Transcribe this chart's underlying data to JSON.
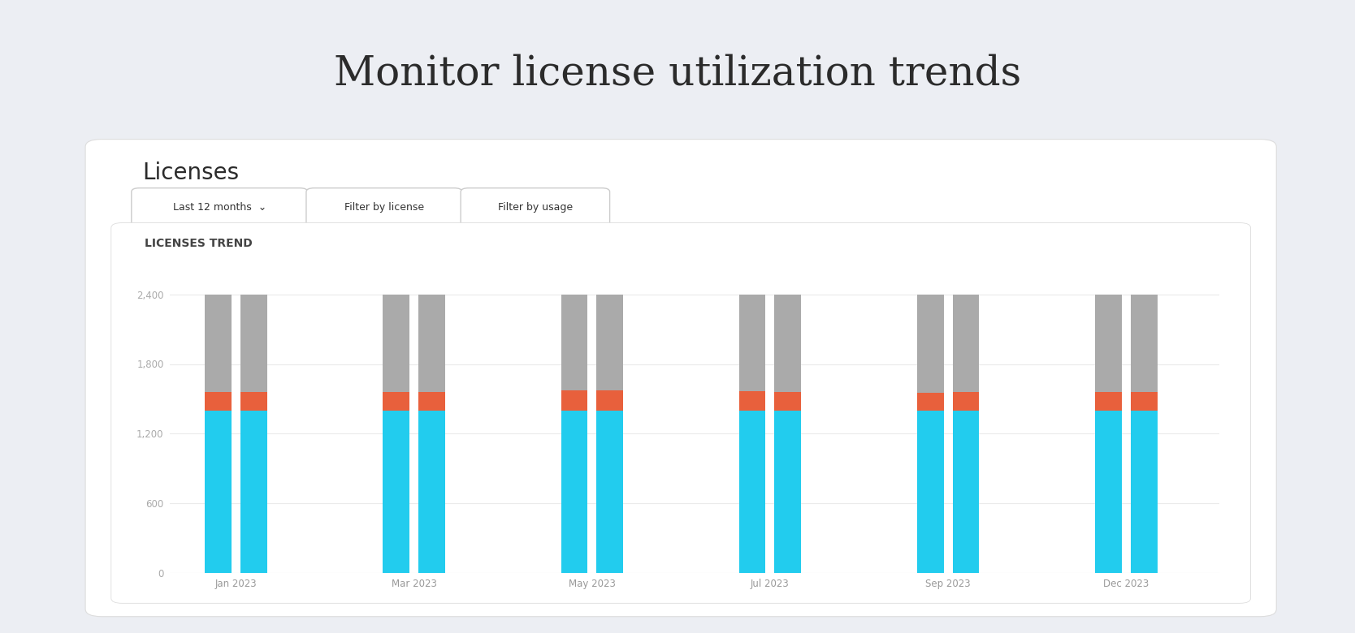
{
  "title": "Monitor license utilization trends",
  "panel_title": "Licenses",
  "chart_subtitle": "LICENSES TREND",
  "button_labels": [
    "Last 12 months  ⌄",
    "Filter by license",
    "Filter by usage"
  ],
  "x_tick_labels": [
    "Jan 2023",
    "Mar 2023",
    "May 2023",
    "Jul 2023",
    "Sep 2023",
    "Dec 2023"
  ],
  "cyan_values": [
    1400,
    1400,
    1400,
    1400,
    1400,
    1400,
    1400,
    1400,
    1400,
    1400,
    1400,
    1400
  ],
  "orange_values": [
    160,
    160,
    160,
    160,
    170,
    175,
    165,
    160,
    155,
    160,
    160,
    160
  ],
  "gray_values": [
    840,
    840,
    840,
    840,
    830,
    825,
    835,
    840,
    845,
    840,
    840,
    840
  ],
  "ylim": [
    0,
    2700
  ],
  "yticks": [
    0,
    600,
    1200,
    1800,
    2400
  ],
  "ytick_labels": [
    "0",
    "600",
    "1,200",
    "1,800",
    "2,400"
  ],
  "color_cyan": "#22CCEE",
  "color_orange": "#E8603C",
  "color_gray": "#AAAAAA",
  "background_outer": "#ECEEF3",
  "background_panel": "#FFFFFF",
  "title_color": "#2B2B2B",
  "title_fontsize": 36,
  "panel_title_fontsize": 20,
  "chart_subtitle_fontsize": 10
}
